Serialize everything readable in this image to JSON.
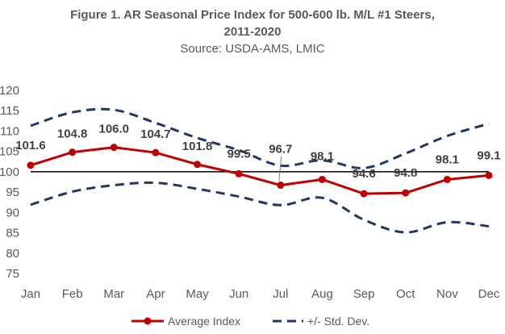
{
  "chart_data": {
    "type": "line",
    "title_line1": "Figure 1. AR Seasonal Price Index for 500-600 lb. M/L #1 Steers,",
    "title_line2": "2011-2020",
    "subtitle": "Source: USDA-AMS, LMIC",
    "categories": [
      "Jan",
      "Feb",
      "Mar",
      "Apr",
      "May",
      "Jun",
      "Jul",
      "Aug",
      "Sep",
      "Oct",
      "Nov",
      "Dec"
    ],
    "y_ticks": [
      75,
      80,
      85,
      90,
      95,
      100,
      105,
      110,
      115,
      120
    ],
    "ylim": [
      75,
      120
    ],
    "reference_line": 100,
    "series": [
      {
        "name": "Average Index",
        "values": [
          101.6,
          104.8,
          106.0,
          104.7,
          101.8,
          99.5,
          96.7,
          98.1,
          94.6,
          94.8,
          98.1,
          99.1
        ],
        "labels": [
          "101.6",
          "104.8",
          "106.0",
          "104.7",
          "101.8",
          "99.5",
          "96.7",
          "98.1",
          "94.6",
          "94.8",
          "98.1",
          "99.1"
        ],
        "color": "#c00000",
        "style": "solid-markers"
      },
      {
        "name": "+/- Std. Dev.",
        "values": [
          111.3,
          114.6,
          115.2,
          112.0,
          108.3,
          105.3,
          101.5,
          102.8,
          100.9,
          104.5,
          108.8,
          111.8
        ],
        "color": "#1f3864",
        "style": "dashed"
      },
      {
        "name": "",
        "values": [
          91.9,
          95.1,
          96.7,
          97.3,
          95.8,
          93.9,
          91.8,
          93.6,
          88.2,
          85.1,
          87.6,
          86.6
        ],
        "color": "#1f3864",
        "style": "dashed"
      }
    ],
    "legend": {
      "position": "bottom",
      "items": [
        "Average Index",
        "+/- Std. Dev."
      ]
    },
    "grid": false
  }
}
